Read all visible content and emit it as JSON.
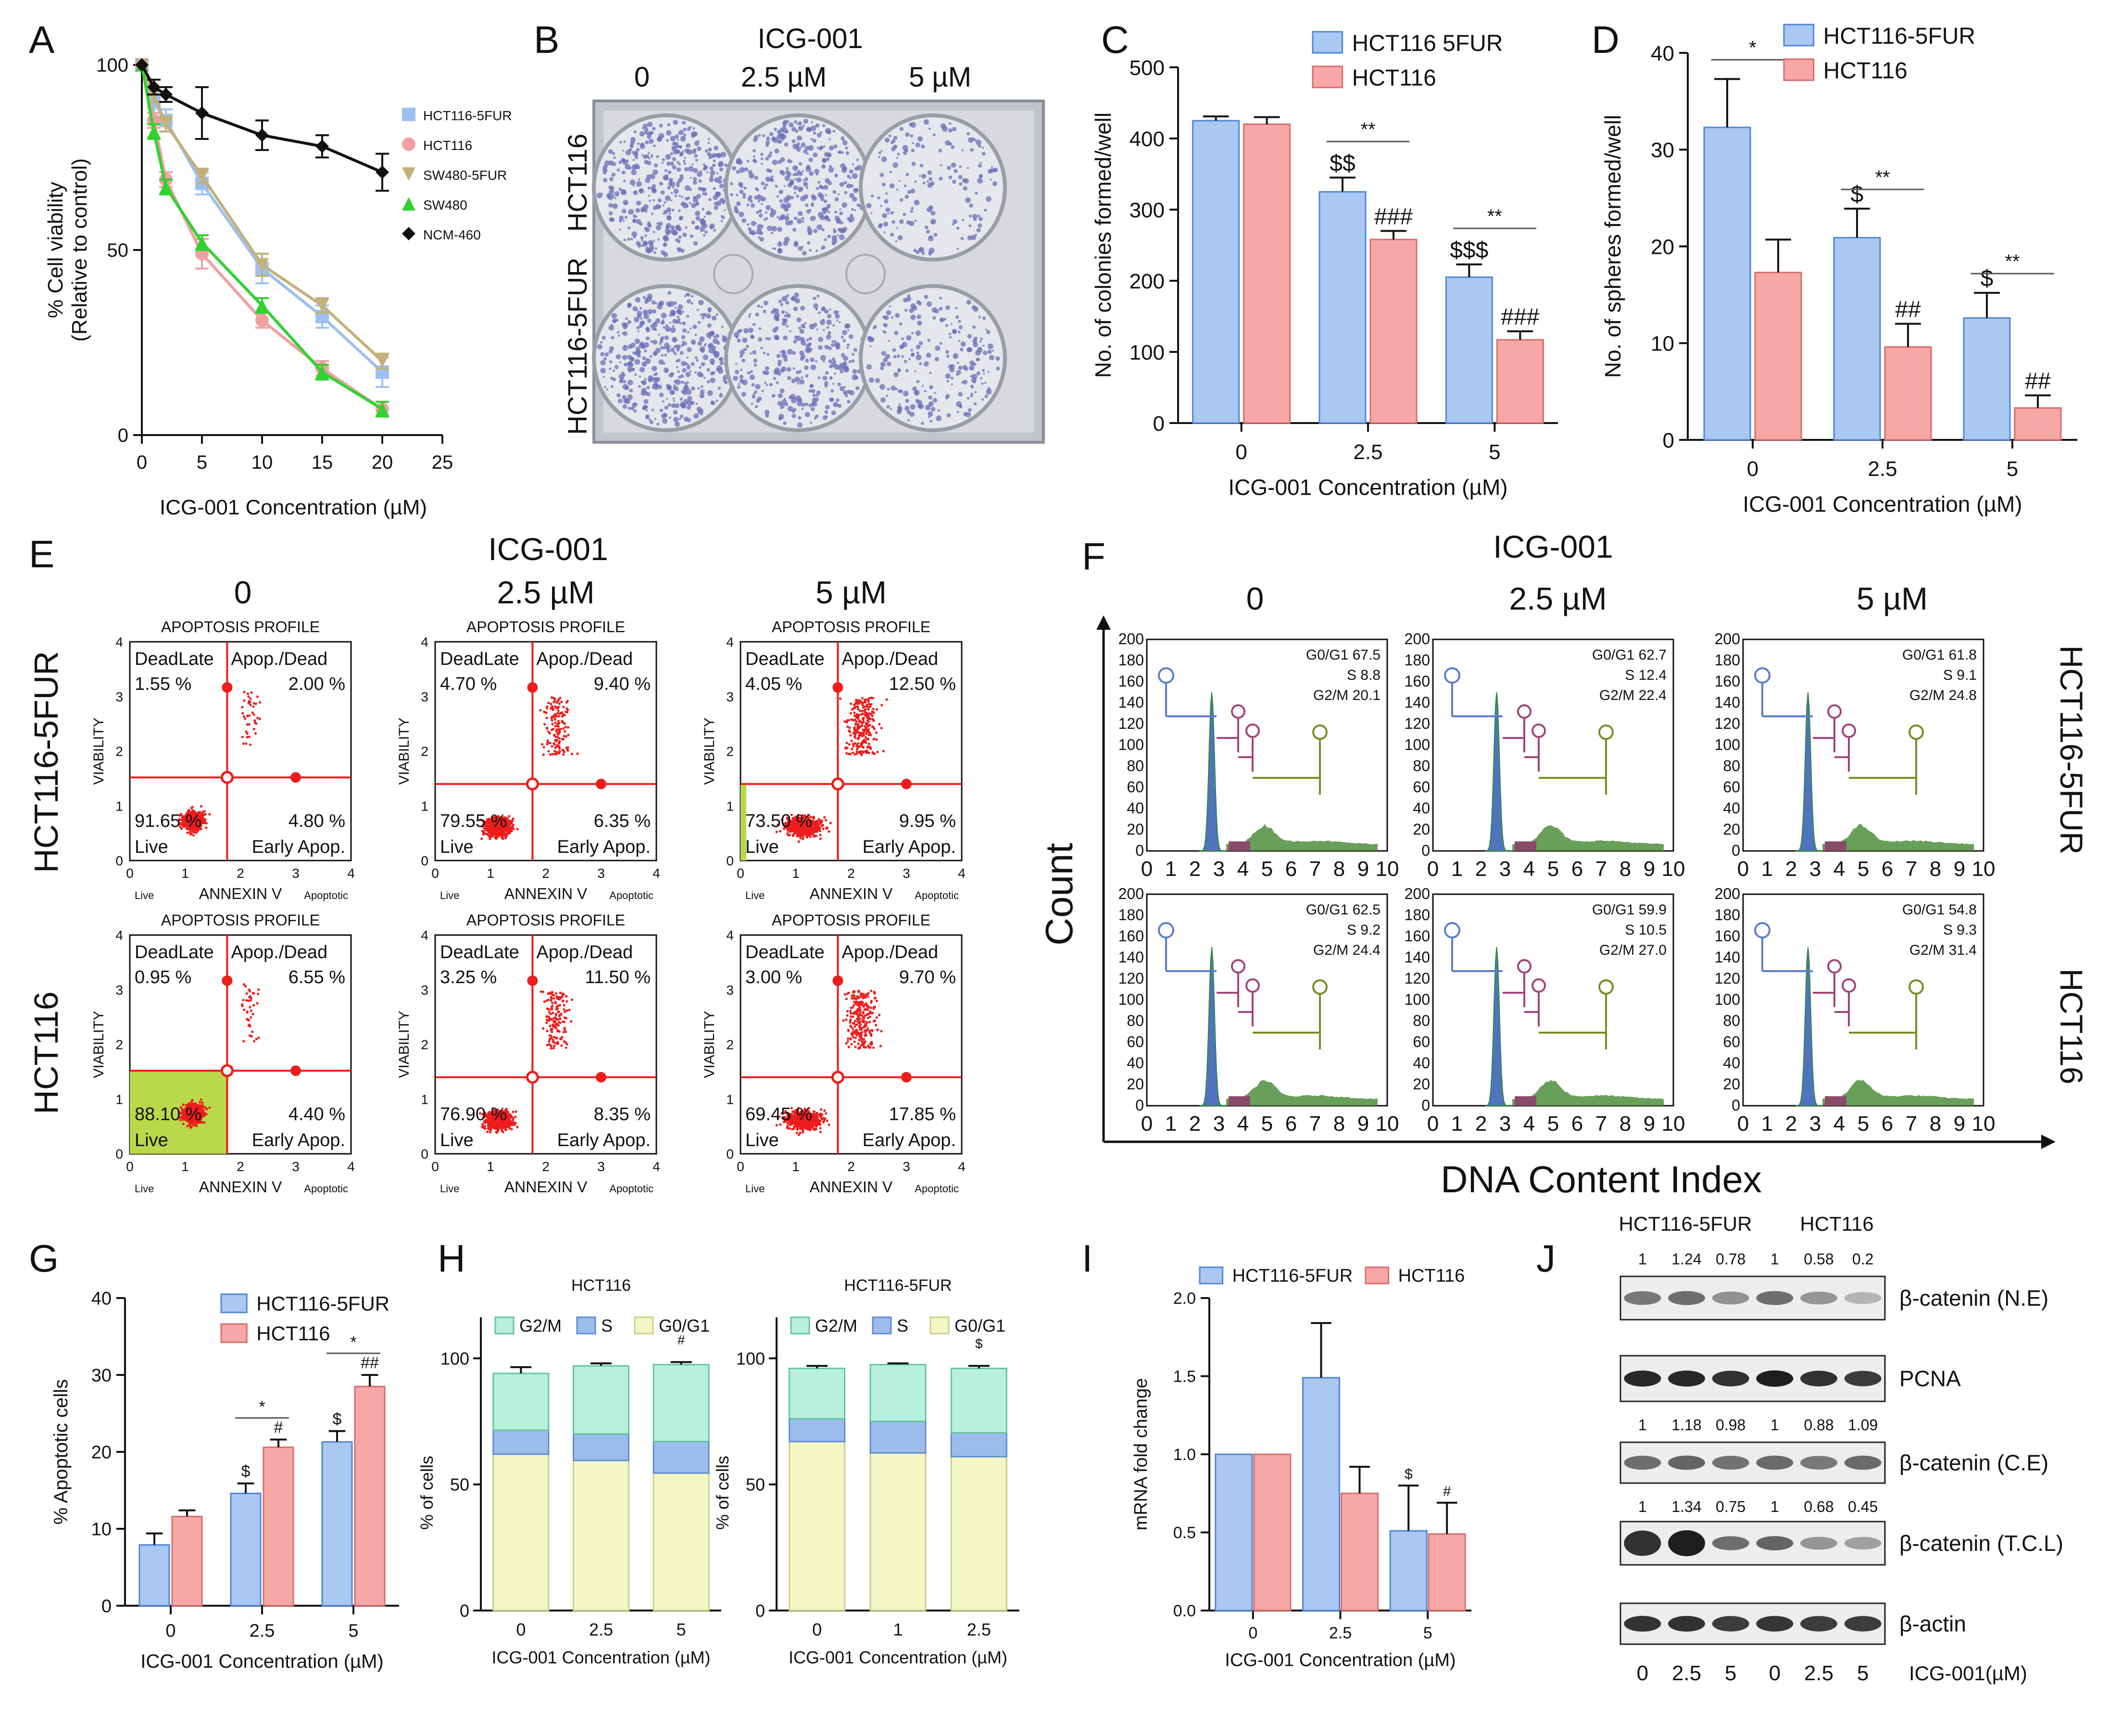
{
  "colors": {
    "blue": "#a9c8f2",
    "blue_edge": "#4f86d8",
    "red": "#f7a8a6",
    "red_edge": "#d96a6a",
    "g2m": "#b9efdd",
    "sphase": "#9cbdec",
    "g0g1": "#f3f7c6",
    "flow_red": "#ee1c1c",
    "hist_blue": "#4f74bd",
    "hist_green": "#4f8f3c"
  },
  "panels": {
    "A": {
      "label": "A",
      "chart_data": {
        "type": "line",
        "title": "",
        "xlabel": "ICG-001 Concentration (µM)",
        "ylabel": "% Cell viability",
        "ylabel2": "(Relative to control)",
        "x": [
          0,
          1,
          2,
          5,
          10,
          15,
          20
        ],
        "xlim": [
          0,
          25
        ],
        "ylim": [
          0,
          100
        ],
        "xticks": [
          0,
          5,
          10,
          15,
          20,
          25
        ],
        "yticks": [
          0,
          50,
          100
        ],
        "series": [
          {
            "name": "HCT116-5FUR",
            "color": "#9cc0f0",
            "marker": "square",
            "values": [
              100,
              90,
              85,
              68,
              45,
              32,
              17
            ],
            "err": [
              0,
              3,
              3,
              3,
              4,
              3,
              4
            ]
          },
          {
            "name": "HCT116",
            "color": "#f0a0a0",
            "marker": "circle",
            "values": [
              100,
              85,
              69,
              49,
              31,
              18,
              7
            ],
            "err": [
              0,
              2,
              2,
              4,
              2,
              2,
              2
            ]
          },
          {
            "name": "SW480-5FUR",
            "color": "#c4b079",
            "marker": "tri-down",
            "values": [
              100,
              92,
              84,
              70,
              46,
              35,
              20
            ],
            "err": [
              0,
              2,
              2,
              2,
              3,
              2,
              2
            ]
          },
          {
            "name": "SW480",
            "color": "#32d132",
            "marker": "triangle",
            "values": [
              100,
              82,
              67,
              52,
              35,
              17,
              7
            ],
            "err": [
              0,
              2,
              2,
              2,
              2,
              2,
              2
            ]
          },
          {
            "name": "NCM-460",
            "color": "#111111",
            "marker": "diamond",
            "values": [
              100,
              94,
              92,
              87,
              81,
              78,
              71
            ],
            "err": [
              0,
              2,
              2,
              7,
              4,
              3,
              5
            ]
          }
        ]
      }
    },
    "B": {
      "label": "B",
      "treatment": "ICG-001",
      "doses": [
        "0",
        "2.5 µM",
        "5 µM"
      ],
      "rows": [
        "HCT116",
        "HCT116-5FUR"
      ]
    },
    "C": {
      "label": "C",
      "chart_data": {
        "type": "bar",
        "xlabel": "ICG-001 Concentration (µM)",
        "ylabel": "No. of colonies formed/well",
        "categories": [
          "0",
          "2.5",
          "5"
        ],
        "ylim": [
          0,
          500
        ],
        "yticks": [
          0,
          100,
          200,
          300,
          400,
          500
        ],
        "series": [
          {
            "name": "HCT116 5FUR",
            "values": [
              425,
              325,
              205
            ],
            "err": [
              6,
              20,
              18
            ],
            "marks": [
              "",
              "$$",
              "$$$"
            ]
          },
          {
            "name": "HCT116",
            "values": [
              420,
              258,
              117
            ],
            "err": [
              10,
              12,
              12
            ],
            "marks": [
              "",
              "###",
              "###"
            ]
          }
        ],
        "sig": [
          "",
          "**",
          "**"
        ]
      }
    },
    "D": {
      "label": "D",
      "chart_data": {
        "type": "bar",
        "xlabel": "ICG-001 Concentration (µM)",
        "ylabel": "No. of spheres formed/well",
        "categories": [
          "0",
          "2.5",
          "5"
        ],
        "ylim": [
          0,
          40
        ],
        "yticks": [
          0,
          10,
          20,
          30,
          40
        ],
        "series": [
          {
            "name": "HCT116-5FUR",
            "values": [
              32.3,
              20.9,
              12.6
            ],
            "err": [
              5.0,
              3.0,
              2.6
            ],
            "marks": [
              "",
              "$",
              "$"
            ]
          },
          {
            "name": "HCT116",
            "values": [
              17.3,
              9.6,
              3.3
            ],
            "err": [
              3.4,
              2.4,
              1.3
            ],
            "marks": [
              "",
              "##",
              "##"
            ]
          }
        ],
        "sig": [
          "*",
          "**",
          "**"
        ]
      }
    },
    "E": {
      "label": "E",
      "treatment": "ICG-001",
      "doses": [
        "0",
        "2.5 µM",
        "5 µM"
      ],
      "rows": [
        "HCT116-5FUR",
        "HCT116"
      ],
      "plot_title": "APOPTOSIS PROFILE",
      "x_axis": "ANNEXIN V",
      "y_axis": "VIABILITY",
      "x_left": "Live",
      "x_right": "Apoptotic",
      "q_tl": "DeadLate",
      "q_tr": "Apop./Dead",
      "q_bl": "Live",
      "q_br": "Early Apop.",
      "ticks": [
        "0",
        "1",
        "2",
        "3",
        "4"
      ],
      "values": [
        [
          {
            "tl": "1.55 %",
            "tr": "2.00 %",
            "bl": "91.65 %",
            "br": "4.80 %"
          },
          {
            "tl": "4.70 %",
            "tr": "9.40 %",
            "bl": "79.55 %",
            "br": "6.35 %"
          },
          {
            "tl": "4.05 %",
            "tr": "12.50 %",
            "bl": "73.50 %",
            "br": "9.95 %"
          }
        ],
        [
          {
            "tl": "0.95 %",
            "tr": "6.55 %",
            "bl": "88.10 %",
            "br": "4.40 %"
          },
          {
            "tl": "3.25 %",
            "tr": "11.50 %",
            "bl": "76.90 %",
            "br": "8.35 %"
          },
          {
            "tl": "3.00 %",
            "tr": "9.70 %",
            "bl": "69.45 %",
            "br": "17.85 %"
          }
        ]
      ]
    },
    "F": {
      "label": "F",
      "treatment": "ICG-001",
      "doses": [
        "0",
        "2.5 µM",
        "5 µM"
      ],
      "rows": [
        "HCT116-5FUR",
        "HCT116"
      ],
      "ylabel": "Count",
      "xlabel": "DNA Content Index",
      "xticks": [
        "0",
        "1",
        "2",
        "3",
        "4",
        "5",
        "6",
        "7",
        "8",
        "9",
        "10"
      ],
      "yticks": [
        "0",
        "20",
        "40",
        "60",
        "80",
        "100",
        "120",
        "140",
        "160",
        "180",
        "200"
      ],
      "values": [
        [
          {
            "g0g1": "G0/G1 67.5",
            "s": "S 8.8",
            "g2m": "G2/M 20.1"
          },
          {
            "g0g1": "G0/G1 62.7",
            "s": "S 12.4",
            "g2m": "G2/M 22.4"
          },
          {
            "g0g1": "G0/G1 61.8",
            "s": "S 9.1",
            "g2m": "G2/M 24.8"
          }
        ],
        [
          {
            "g0g1": "G0/G1 62.5",
            "s": "S 9.2",
            "g2m": "G2/M 24.4"
          },
          {
            "g0g1": "G0/G1 59.9",
            "s": "S 10.5",
            "g2m": "G2/M 27.0"
          },
          {
            "g0g1": "G0/G1 54.8",
            "s": "S 9.3",
            "g2m": "G2/M 31.4"
          }
        ]
      ]
    },
    "G": {
      "label": "G",
      "chart_data": {
        "type": "bar",
        "xlabel": "ICG-001 Concentration (µM)",
        "ylabel": "% Apoptotic cells",
        "categories": [
          "0",
          "2.5",
          "5"
        ],
        "ylim": [
          0,
          40
        ],
        "yticks": [
          0,
          10,
          20,
          30,
          40
        ],
        "series": [
          {
            "name": "HCT116-5FUR",
            "values": [
              7.9,
              14.6,
              21.3
            ],
            "err": [
              1.5,
              1.3,
              1.4
            ],
            "marks": [
              "",
              "$",
              "$"
            ]
          },
          {
            "name": "HCT116",
            "values": [
              11.6,
              20.6,
              28.5
            ],
            "err": [
              0.8,
              1.0,
              1.5
            ],
            "marks": [
              "",
              "#",
              "##"
            ]
          }
        ],
        "sig": [
          "",
          "*",
          "*"
        ]
      }
    },
    "H": {
      "label": "H",
      "chart_data": [
        {
          "type": "bar",
          "stacked": true,
          "title": "HCT116",
          "xlabel": "ICG-001 Concentration (µM)",
          "ylabel": "% of cells",
          "categories": [
            "0",
            "2.5",
            "5"
          ],
          "ylim": [
            0,
            100
          ],
          "yticks": [
            0,
            50,
            100
          ],
          "series": [
            {
              "name": "G0/G1",
              "values": [
                62,
                59.5,
                54.5
              ],
              "err": [
                1.5,
                1.0,
                1.5
              ]
            },
            {
              "name": "S",
              "values": [
                9.5,
                10.5,
                12.5
              ],
              "err": [
                1.5,
                0.5,
                1.5
              ]
            },
            {
              "name": "G2/M",
              "values": [
                22.5,
                27,
                30.5
              ],
              "err": [
                2.5,
                1.0,
                1.0
              ]
            }
          ],
          "marks": [
            "",
            "",
            "#"
          ]
        },
        {
          "type": "bar",
          "stacked": true,
          "title": "HCT116-5FUR",
          "xlabel": "ICG-001 Concentration (µM)",
          "ylabel": "% of cells",
          "categories": [
            "0",
            "1",
            "2.5"
          ],
          "ylim": [
            0,
            100
          ],
          "yticks": [
            0,
            50,
            100
          ],
          "series": [
            {
              "name": "G0/G1",
              "values": [
                67,
                62.5,
                61
              ],
              "err": [
                1.5,
                1.0,
                1.5
              ]
            },
            {
              "name": "S",
              "values": [
                9,
                12.5,
                9.5
              ],
              "err": [
                1.0,
                1.0,
                1.0
              ]
            },
            {
              "name": "G2/M",
              "values": [
                20,
                22.5,
                25.5
              ],
              "err": [
                1.0,
                0.5,
                1.0
              ]
            }
          ],
          "marks": [
            "",
            "",
            "$"
          ]
        }
      ]
    },
    "I": {
      "label": "I",
      "chart_data": {
        "type": "bar",
        "xlabel": "ICG-001 Concentration (µM)",
        "ylabel": "mRNA fold change",
        "categories": [
          "0",
          "2.5",
          "5"
        ],
        "ylim": [
          0,
          2.0
        ],
        "yticks": [
          "0.0",
          "0.5",
          "1.0",
          "1.5",
          "2.0"
        ],
        "series": [
          {
            "name": "HCT116-5FUR",
            "values": [
              1.0,
              1.49,
              0.51
            ],
            "err": [
              0,
              0.35,
              0.29
            ],
            "marks": [
              "",
              "",
              "$"
            ]
          },
          {
            "name": "HCT116",
            "values": [
              1.0,
              0.75,
              0.49
            ],
            "err": [
              0,
              0.17,
              0.2
            ],
            "marks": [
              "",
              "",
              "#"
            ]
          }
        ]
      }
    },
    "J": {
      "label": "J",
      "groups": [
        "HCT116-5FUR",
        "HCT116"
      ],
      "lane_labels": [
        "0",
        "2.5",
        "5",
        "0",
        "2.5",
        "5"
      ],
      "treatment_label": "ICG-001(µM)",
      "blots": [
        {
          "name": "β-catenin (N.E)",
          "quant": [
            "1",
            "1.24",
            "0.78",
            "1",
            "0.58",
            "0.2"
          ],
          "intensity": [
            0.55,
            0.6,
            0.42,
            0.6,
            0.4,
            0.25
          ]
        },
        {
          "name": "PCNA",
          "quant": [],
          "intensity": [
            0.95,
            0.95,
            0.9,
            1.0,
            0.9,
            0.85
          ]
        },
        {
          "name": "β-catenin (C.E)",
          "quant": [
            "1",
            "1.18",
            "0.98",
            "1",
            "0.88",
            "1.09"
          ],
          "intensity": [
            0.6,
            0.65,
            0.58,
            0.62,
            0.55,
            0.62
          ]
        },
        {
          "name": "β-catenin (T.C.L)",
          "quant": [
            "1",
            "1.34",
            "0.75",
            "1",
            "0.68",
            "0.45"
          ],
          "intensity": [
            0.9,
            1.0,
            0.6,
            0.65,
            0.4,
            0.35
          ]
        },
        {
          "name": "β-actin",
          "quant": [],
          "intensity": [
            0.9,
            0.9,
            0.85,
            0.88,
            0.85,
            0.85
          ]
        }
      ]
    }
  }
}
